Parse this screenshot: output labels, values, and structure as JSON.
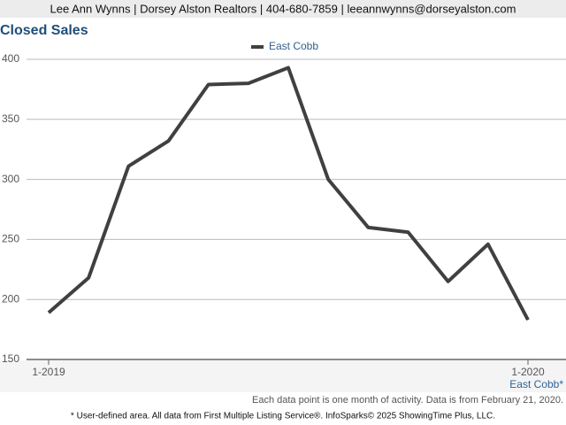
{
  "header": "Lee Ann Wynns | Dorsey Alston Realtors | 404-680-7859 | leeannwynns@dorseyalston.com",
  "chart_data": {
    "type": "line",
    "title": "Closed Sales",
    "categories": [
      "1-2019",
      null,
      null,
      null,
      null,
      null,
      null,
      null,
      null,
      null,
      null,
      null,
      "1-2020"
    ],
    "series": [
      {
        "name": "East Cobb",
        "color": "#404040",
        "values": [
          189,
          218,
          311,
          332,
          379,
          380,
          393,
          300,
          260,
          256,
          215,
          246,
          183
        ]
      }
    ],
    "ylim": [
      150,
      400
    ],
    "yticks": [
      150,
      200,
      250,
      300,
      350,
      400
    ],
    "grid": true,
    "area_label": "East Cobb*"
  },
  "footer": {
    "note": "Each data point is one month of activity. Data is from February 21, 2020.",
    "disclaimer": "* User-defined area. All data from First Multiple Listing Service®. InfoSparks© 2025 ShowingTime Plus, LLC."
  }
}
